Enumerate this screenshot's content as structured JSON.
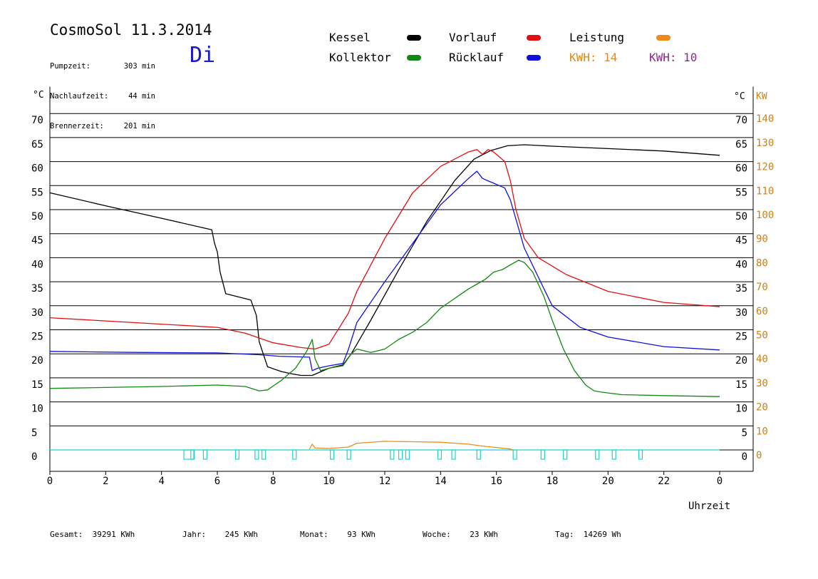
{
  "header": {
    "title": "CosmoSol 11.3.2014",
    "day": "Di",
    "stats": [
      {
        "label": "Pumpzeit:",
        "value": "303 min"
      },
      {
        "label": "Nachlaufzeit:",
        "value": "44 min"
      },
      {
        "label": "Brennerzeit:",
        "value": "201 min"
      }
    ]
  },
  "legend": {
    "kessel": {
      "label": "Kessel",
      "color": "#000000"
    },
    "vorlauf": {
      "label": "Vorlauf",
      "color": "#e01010"
    },
    "leistung": {
      "label": "Leistung",
      "color": "#f08a1a"
    },
    "kollektor": {
      "label": "Kollektor",
      "color": "#118811"
    },
    "ruecklauf": {
      "label": "Rücklauf",
      "color": "#1010dd"
    },
    "kwh1": {
      "label": "KWH:",
      "value": "14",
      "color": "#e08a1a"
    },
    "kwh2": {
      "label": "KWH:",
      "value": "10",
      "color": "#8a2a8a"
    }
  },
  "footer": [
    {
      "label": "Gesamt:",
      "value": "39291 KWh"
    },
    {
      "label": "Jahr:",
      "value": "245 KWh"
    },
    {
      "label": "Monat:",
      "value": "93 KWh"
    },
    {
      "label": "Woche:",
      "value": "23 KWh"
    },
    {
      "label": "Tag:",
      "value": "14269 Wh"
    }
  ],
  "chart_data": {
    "type": "line",
    "xlabel": "Uhrzeit",
    "ylabel_left": "°C",
    "ylabel_right_temp": "°C",
    "ylabel_right_power": "KW",
    "xlim": [
      0,
      24
    ],
    "ylim": [
      -5,
      75
    ],
    "x_ticks": [
      "0",
      "2",
      "4",
      "6",
      "8",
      "10",
      "12",
      "14",
      "16",
      "18",
      "20",
      "22",
      "0"
    ],
    "y_ticks_left": [
      "0",
      "5",
      "10",
      "15",
      "20",
      "25",
      "30",
      "35",
      "40",
      "45",
      "50",
      "55",
      "60",
      "65",
      "70"
    ],
    "y_ticks_right_temp": [
      "0",
      "5",
      "10",
      "15",
      "20",
      "25",
      "30",
      "35",
      "40",
      "45",
      "50",
      "55",
      "60",
      "65",
      "70"
    ],
    "y_ticks_right_power": [
      "0",
      "10",
      "20",
      "30",
      "40",
      "50",
      "60",
      "70",
      "80",
      "90",
      "100",
      "110",
      "120",
      "130",
      "140"
    ],
    "series": [
      {
        "name": "Kessel",
        "color": "#000000",
        "x": [
          0,
          2,
          4,
          5.8,
          5.9,
          6.0,
          6.1,
          6.3,
          7.2,
          7.4,
          7.5,
          7.8,
          8.3,
          8.7,
          9.0,
          9.4,
          10.0,
          10.5,
          10.8,
          11.5,
          12.5,
          13.5,
          14.5,
          15.2,
          15.8,
          16.4,
          17.0,
          18.0,
          20.0,
          22.0,
          24.0
        ],
        "y": [
          53.5,
          50.8,
          48.2,
          45.8,
          43.0,
          41.2,
          37.0,
          32.5,
          31.2,
          28.0,
          22.5,
          17.3,
          16.3,
          15.8,
          15.5,
          15.5,
          17.0,
          17.7,
          20.0,
          27.0,
          37.5,
          47.5,
          56.0,
          60.5,
          62.3,
          63.3,
          63.5,
          63.2,
          62.7,
          62.2,
          61.3
        ]
      },
      {
        "name": "Vorlauf",
        "color": "#e01010",
        "x": [
          0,
          3,
          6.0,
          7.0,
          8.0,
          9.0,
          9.5,
          10.0,
          10.7,
          11.0,
          12.0,
          13.0,
          14.0,
          15.0,
          15.3,
          15.5,
          15.7,
          15.9,
          16.1,
          16.3,
          16.5,
          16.7,
          17.0,
          17.5,
          18.5,
          20.0,
          22.0,
          24.0
        ],
        "y": [
          27.5,
          26.5,
          25.5,
          24.3,
          22.3,
          21.3,
          21.0,
          22.0,
          28.5,
          33.0,
          44.0,
          53.5,
          59.0,
          62.0,
          62.5,
          61.5,
          62.5,
          62.0,
          61.0,
          60.0,
          56.0,
          50.0,
          44.0,
          40.0,
          36.5,
          33.0,
          30.7,
          29.8
        ]
      },
      {
        "name": "Rücklauf",
        "color": "#1010dd",
        "x": [
          0,
          3,
          6.0,
          7.5,
          8.2,
          9.3,
          9.4,
          9.6,
          10.0,
          10.5,
          10.7,
          11.0,
          12.0,
          13.0,
          14.0,
          15.0,
          15.3,
          15.5,
          15.7,
          15.9,
          16.1,
          16.3,
          16.5,
          16.7,
          17.0,
          17.5,
          18.0,
          19.0,
          20.0,
          22.0,
          24.0
        ],
        "y": [
          20.5,
          20.3,
          20.2,
          19.8,
          19.5,
          19.3,
          16.5,
          17.0,
          17.5,
          18.0,
          21.0,
          26.5,
          35.0,
          43.0,
          51.0,
          56.5,
          58.0,
          56.5,
          56.0,
          55.5,
          55.0,
          54.5,
          52.0,
          48.0,
          42.0,
          36.0,
          30.0,
          25.5,
          23.5,
          21.5,
          20.8
        ]
      },
      {
        "name": "Kollektor",
        "color": "#118811",
        "x": [
          0,
          2,
          4,
          6,
          7.0,
          7.5,
          7.8,
          8.3,
          8.8,
          9.2,
          9.4,
          9.5,
          9.7,
          10.0,
          10.5,
          10.8,
          11.0,
          11.5,
          12.0,
          12.5,
          13.0,
          13.5,
          14.0,
          14.5,
          15.0,
          15.3,
          15.6,
          15.9,
          16.2,
          16.5,
          16.8,
          17.0,
          17.3,
          17.7,
          18.0,
          18.4,
          18.8,
          19.2,
          19.5,
          19.8,
          20.5,
          22.0,
          24.0
        ],
        "y": [
          12.8,
          13.0,
          13.2,
          13.5,
          13.2,
          12.3,
          12.5,
          14.5,
          17.0,
          20.5,
          23.0,
          19.0,
          16.5,
          17.0,
          17.5,
          20.0,
          21.0,
          20.3,
          21.0,
          23.0,
          24.5,
          26.5,
          29.5,
          31.5,
          33.5,
          34.5,
          35.5,
          37.0,
          37.5,
          38.5,
          39.5,
          39.0,
          37.0,
          32.0,
          27.0,
          21.0,
          16.5,
          13.5,
          12.3,
          12.0,
          11.5,
          11.3,
          11.1
        ]
      },
      {
        "name": "Leistung",
        "color": "#f08a1a",
        "x": [
          9.3,
          9.4,
          9.5,
          10.0,
          10.7,
          11.0,
          12.0,
          13.0,
          14.0,
          15.0,
          15.5,
          16.0,
          16.5,
          16.6
        ],
        "y": [
          0.2,
          1.2,
          0.4,
          0.3,
          0.6,
          1.4,
          1.8,
          1.7,
          1.6,
          1.2,
          0.8,
          0.5,
          0.2,
          0.0
        ]
      }
    ],
    "pump_markers_x": [
      4.8,
      5.05,
      5.5,
      6.65,
      7.35,
      7.6,
      8.7,
      10.05,
      10.65,
      12.2,
      12.5,
      12.75,
      13.9,
      14.4,
      15.3,
      16.6,
      17.6,
      18.4,
      19.55,
      20.15,
      21.1
    ]
  }
}
